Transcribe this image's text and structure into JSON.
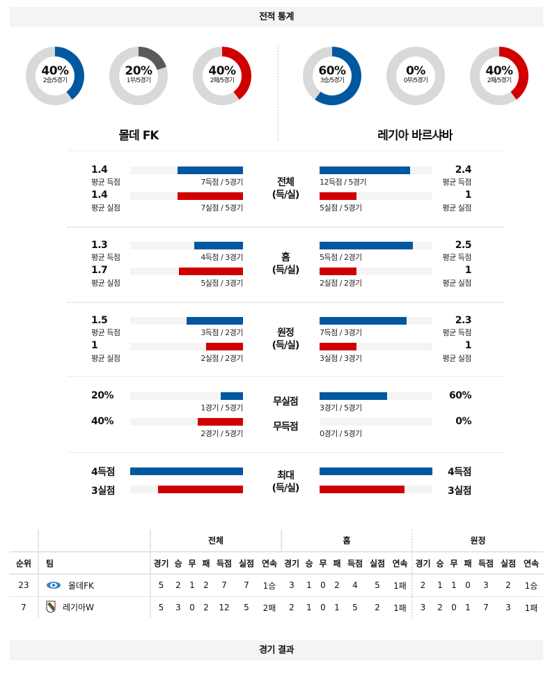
{
  "headers": {
    "stats": "전적 통계",
    "results": "경기 결과"
  },
  "colors": {
    "win": "#0058a0",
    "draw": "#5a5a5a",
    "loss": "#d10000",
    "track": "#d9d9d9"
  },
  "home_team": {
    "name": "몰데 FK",
    "donuts": [
      {
        "pct": "40%",
        "value": 40,
        "sub": "2승/5경기",
        "type": "win"
      },
      {
        "pct": "20%",
        "value": 20,
        "sub": "1무/5경기",
        "type": "draw"
      },
      {
        "pct": "40%",
        "value": 40,
        "sub": "2패/5경기",
        "type": "loss"
      }
    ]
  },
  "away_team": {
    "name": "레기아 바르샤바",
    "donuts": [
      {
        "pct": "60%",
        "value": 60,
        "sub": "3승/5경기",
        "type": "win"
      },
      {
        "pct": "0%",
        "value": 0,
        "sub": "0무/5경기",
        "type": "draw"
      },
      {
        "pct": "40%",
        "value": 40,
        "sub": "2패/5경기",
        "type": "loss"
      }
    ]
  },
  "goal_stats": [
    {
      "category": [
        "전체",
        "(득/실)"
      ],
      "home": {
        "scored_avg": "1.4",
        "scored_label": "평균 득점",
        "scored_detail": "7득점 / 5경기",
        "scored_ratio": 0.58,
        "conceded_avg": "1.4",
        "conceded_label": "평균 실점",
        "conceded_detail": "7실점 / 5경기",
        "conceded_ratio": 0.58
      },
      "away": {
        "scored_avg": "2.4",
        "scored_label": "평균 득점",
        "scored_detail": "12득점 / 5경기",
        "scored_ratio": 0.8,
        "conceded_avg": "1",
        "conceded_label": "평균 실점",
        "conceded_detail": "5실점 / 5경기",
        "conceded_ratio": 0.33
      }
    },
    {
      "category": [
        "홈",
        "(득/실)"
      ],
      "home": {
        "scored_avg": "1.3",
        "scored_label": "평균 득점",
        "scored_detail": "4득점 / 3경기",
        "scored_ratio": 0.43,
        "conceded_avg": "1.7",
        "conceded_label": "평균 실점",
        "conceded_detail": "5실점 / 3경기",
        "conceded_ratio": 0.57
      },
      "away": {
        "scored_avg": "2.5",
        "scored_label": "평균 득점",
        "scored_detail": "5득점 / 2경기",
        "scored_ratio": 0.83,
        "conceded_avg": "1",
        "conceded_label": "평균 실점",
        "conceded_detail": "2실점 / 2경기",
        "conceded_ratio": 0.33
      }
    },
    {
      "category": [
        "원정",
        "(득/실)"
      ],
      "home": {
        "scored_avg": "1.5",
        "scored_label": "평균 득점",
        "scored_detail": "3득점 / 2경기",
        "scored_ratio": 0.5,
        "conceded_avg": "1",
        "conceded_label": "평균 실점",
        "conceded_detail": "2실점 / 2경기",
        "conceded_ratio": 0.33
      },
      "away": {
        "scored_avg": "2.3",
        "scored_label": "평균 득점",
        "scored_detail": "7득점 / 3경기",
        "scored_ratio": 0.77,
        "conceded_avg": "1",
        "conceded_label": "평균 실점",
        "conceded_detail": "3실점 / 3경기",
        "conceded_ratio": 0.33
      }
    }
  ],
  "clean_sheet": {
    "labels": [
      "무실점",
      "무득점"
    ],
    "home": {
      "clean_pct": "20%",
      "clean_detail": "1경기 / 5경기",
      "clean_ratio": 0.2,
      "noscore_pct": "40%",
      "noscore_detail": "2경기 / 5경기",
      "noscore_ratio": 0.4
    },
    "away": {
      "clean_pct": "60%",
      "clean_detail": "3경기 / 5경기",
      "clean_ratio": 0.6,
      "noscore_pct": "0%",
      "noscore_detail": "0경기 / 5경기",
      "noscore_ratio": 0
    }
  },
  "max_goals": {
    "category": [
      "최대",
      "(득/실)"
    ],
    "home": {
      "scored": "4득점",
      "scored_ratio": 1.0,
      "conceded": "3실점",
      "conceded_ratio": 0.75
    },
    "away": {
      "scored": "4득점",
      "scored_ratio": 1.0,
      "conceded": "3실점",
      "conceded_ratio": 0.75
    }
  },
  "standings": {
    "group_headers": [
      "전체",
      "홈",
      "원정"
    ],
    "columns": [
      "순위",
      "팀",
      "경기",
      "승",
      "무",
      "패",
      "득점",
      "실점",
      "연속"
    ],
    "rows": [
      {
        "rank": "23",
        "team": "몰데FK",
        "logo": "molde-logo",
        "total": [
          "5",
          "2",
          "1",
          "2",
          "7",
          "7",
          "1승"
        ],
        "home": [
          "3",
          "1",
          "0",
          "2",
          "4",
          "5",
          "1패"
        ],
        "away": [
          "2",
          "1",
          "1",
          "0",
          "3",
          "2",
          "1승"
        ]
      },
      {
        "rank": "7",
        "team": "레기아W",
        "logo": "legia-logo",
        "total": [
          "5",
          "3",
          "0",
          "2",
          "12",
          "5",
          "2패"
        ],
        "home": [
          "2",
          "1",
          "0",
          "1",
          "5",
          "2",
          "1패"
        ],
        "away": [
          "3",
          "2",
          "0",
          "1",
          "7",
          "3",
          "1패"
        ]
      }
    ]
  }
}
